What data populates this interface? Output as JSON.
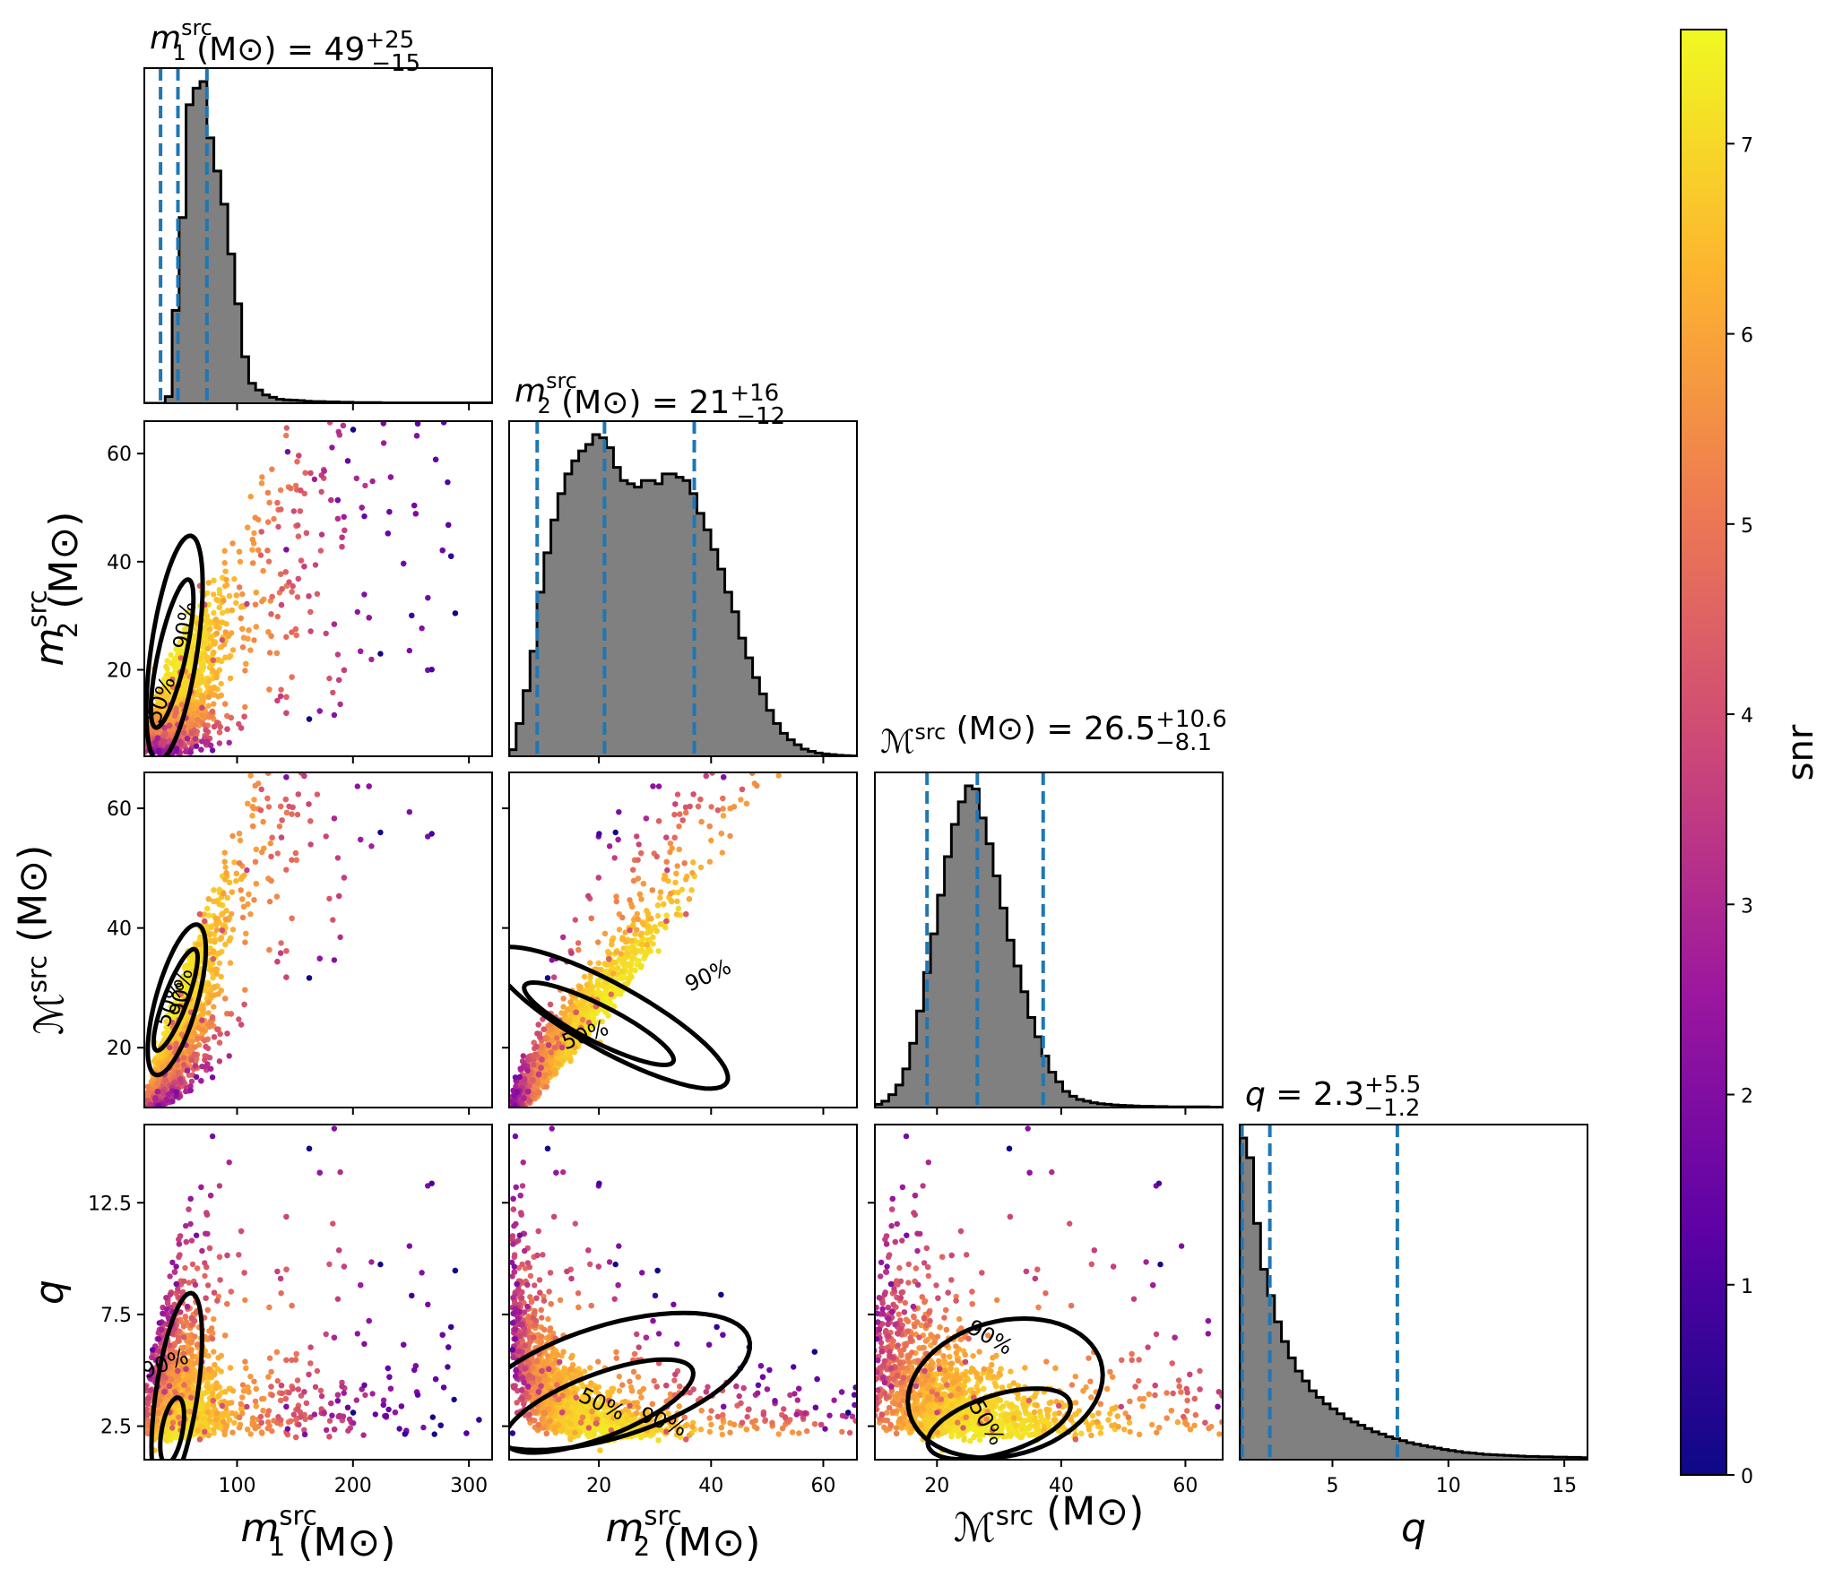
{
  "colorbar": {
    "label": "snr",
    "ticks": [
      0,
      1,
      2,
      3,
      4,
      5,
      6,
      7
    ],
    "range": [
      0,
      7.6
    ],
    "colormap": "plasma",
    "colors": [
      "#0d0887",
      "#5c01a6",
      "#9c179e",
      "#cc4778",
      "#ed7953",
      "#fdb42f",
      "#f0f921"
    ]
  },
  "accent_colors": {
    "quantile_line": "#1f77b4",
    "hist_fill": "#808080",
    "contour": "#000000"
  },
  "chart_data": {
    "type": "scatter",
    "subtype": "corner-plot",
    "parameters": [
      {
        "key": "m1",
        "main": "m",
        "sub": "1",
        "sup": "src",
        "unit": "(M⊙)",
        "range": [
          20,
          320
        ],
        "ticks": [
          100,
          200,
          300
        ],
        "title_value": "49",
        "title_plus": "+25",
        "title_minus": "−15",
        "quantiles": [
          34,
          49,
          74
        ]
      },
      {
        "key": "m2",
        "main": "m",
        "sub": "2",
        "sup": "src",
        "unit": "(M⊙)",
        "range": [
          4,
          66
        ],
        "ticks": [
          20,
          40,
          60
        ],
        "title_value": "21",
        "title_plus": "+16",
        "title_minus": "−12",
        "quantiles": [
          9,
          21,
          37
        ]
      },
      {
        "key": "mc",
        "main": "ℳ",
        "sub": "",
        "sup": "src",
        "unit": "(M⊙)",
        "range": [
          10,
          66
        ],
        "ticks": [
          20,
          40,
          60
        ],
        "title_value": "26.5",
        "title_plus": "+10.6",
        "title_minus": "−8.1",
        "quantiles": [
          18.4,
          26.5,
          37.1
        ]
      },
      {
        "key": "q",
        "main": "q",
        "sub": "",
        "sup": "",
        "unit": "",
        "range": [
          1,
          16
        ],
        "ticks": [
          5,
          10,
          15
        ],
        "ticks_left": [
          2.5,
          7.5,
          12.5
        ],
        "title_value": "2.3",
        "title_plus": "+5.5",
        "title_minus": "−1.2",
        "quantiles": [
          1.1,
          2.3,
          7.8
        ]
      }
    ],
    "histograms": {
      "m1": {
        "edges_start": 20,
        "bin_width": 6,
        "counts": [
          0,
          0,
          0,
          0.02,
          0.28,
          0.56,
          0.9,
          0.95,
          0.97,
          0.8,
          0.7,
          0.6,
          0.45,
          0.3,
          0.14,
          0.06,
          0.04,
          0.025,
          0.018,
          0.012,
          0.01,
          0.009,
          0.008,
          0.006,
          0.005,
          0.005,
          0.004,
          0.004,
          0.003,
          0.003,
          0.002,
          0.002,
          0.002,
          0.002,
          0.001,
          0.001,
          0.001,
          0.001,
          0.001,
          0.001,
          0.001,
          0.001,
          0.001,
          0.001,
          0.001,
          0.001,
          0.001,
          0.001,
          0.001,
          0.001
        ]
      },
      "m2": {
        "edges_start": 4,
        "bin_width": 1.24,
        "counts": [
          0.02,
          0.1,
          0.2,
          0.32,
          0.5,
          0.62,
          0.72,
          0.8,
          0.86,
          0.9,
          0.93,
          0.95,
          0.98,
          0.97,
          0.94,
          0.88,
          0.84,
          0.83,
          0.82,
          0.84,
          0.84,
          0.83,
          0.86,
          0.86,
          0.85,
          0.84,
          0.8,
          0.74,
          0.69,
          0.63,
          0.57,
          0.5,
          0.44,
          0.36,
          0.3,
          0.24,
          0.19,
          0.14,
          0.1,
          0.07,
          0.05,
          0.035,
          0.022,
          0.015,
          0.01,
          0.007,
          0.005,
          0.003,
          0.002,
          0.001
        ]
      },
      "mc": {
        "edges_start": 10,
        "bin_width": 1.12,
        "counts": [
          0.01,
          0.02,
          0.04,
          0.07,
          0.12,
          0.2,
          0.3,
          0.42,
          0.54,
          0.66,
          0.78,
          0.88,
          0.95,
          1.0,
          0.99,
          0.9,
          0.82,
          0.72,
          0.62,
          0.52,
          0.44,
          0.36,
          0.28,
          0.22,
          0.16,
          0.11,
          0.08,
          0.05,
          0.035,
          0.025,
          0.02,
          0.015,
          0.012,
          0.01,
          0.008,
          0.007,
          0.006,
          0.005,
          0.004,
          0.004,
          0.003,
          0.003,
          0.002,
          0.002,
          0.002,
          0.002,
          0.002,
          0.002,
          0.001,
          0.001
        ]
      },
      "q": {
        "edges_start": 1,
        "bin_width": 0.3,
        "counts": [
          0.98,
          0.92,
          0.72,
          0.58,
          0.5,
          0.42,
          0.36,
          0.31,
          0.27,
          0.24,
          0.21,
          0.19,
          0.17,
          0.155,
          0.14,
          0.125,
          0.115,
          0.105,
          0.095,
          0.085,
          0.078,
          0.07,
          0.064,
          0.058,
          0.052,
          0.047,
          0.043,
          0.039,
          0.035,
          0.031,
          0.028,
          0.025,
          0.022,
          0.02,
          0.018,
          0.016,
          0.015,
          0.014,
          0.013,
          0.012,
          0.011,
          0.01,
          0.01,
          0.009,
          0.009,
          0.008,
          0.008,
          0.007,
          0.007,
          0.006
        ]
      }
    },
    "scatter_pairs": [
      {
        "x": "m1",
        "y": "m2",
        "contour_labels": [
          "50%",
          "90%"
        ]
      },
      {
        "x": "m1",
        "y": "mc",
        "contour_labels": [
          "50%",
          "90%"
        ]
      },
      {
        "x": "m2",
        "y": "mc",
        "contour_labels": [
          "50%",
          "90%"
        ]
      },
      {
        "x": "m1",
        "y": "q",
        "contour_labels": [
          "90%"
        ]
      },
      {
        "x": "m2",
        "y": "q",
        "contour_labels": [
          "50%",
          "90%"
        ]
      },
      {
        "x": "mc",
        "y": "q",
        "contour_labels": [
          "90%",
          "50%"
        ]
      }
    ]
  }
}
